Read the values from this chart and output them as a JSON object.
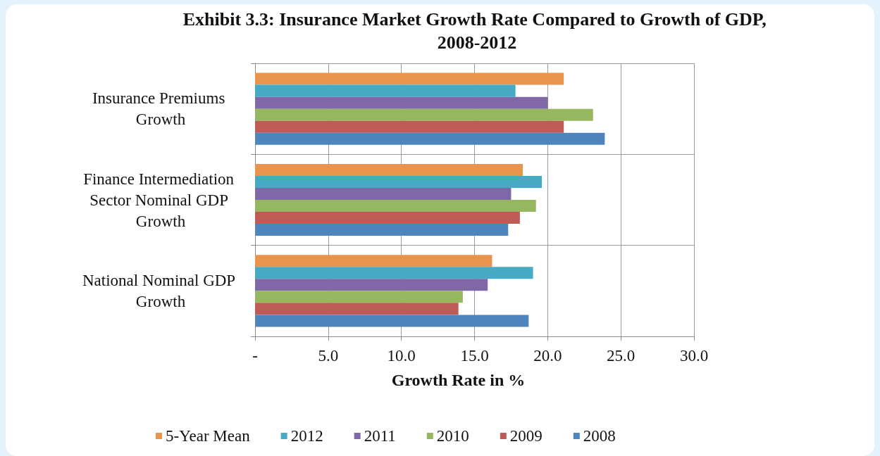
{
  "chart_data": {
    "type": "bar",
    "orientation": "horizontal",
    "title": "Exhibit 3.3: Insurance Market Growth Rate Compared to Growth of GDP, 2008-2012",
    "xlabel": "Growth Rate in %",
    "categories": [
      "Insurance Premiums Growth",
      "Finance Intermediation Sector Nominal GDP Growth",
      "National Nominal GDP Growth"
    ],
    "series": [
      {
        "name": "5-Year Mean",
        "color": "#e8944e",
        "values": [
          21.1,
          18.3,
          16.2
        ]
      },
      {
        "name": "2012",
        "color": "#47aac5",
        "values": [
          17.8,
          19.6,
          19.0
        ]
      },
      {
        "name": "2011",
        "color": "#8067a6",
        "values": [
          20.0,
          17.5,
          15.9
        ]
      },
      {
        "name": "2010",
        "color": "#97b660",
        "values": [
          23.1,
          19.2,
          14.2
        ]
      },
      {
        "name": "2009",
        "color": "#bf5b56",
        "values": [
          21.1,
          18.1,
          13.9
        ]
      },
      {
        "name": "2008",
        "color": "#4e85bc",
        "values": [
          23.9,
          17.3,
          18.7
        ]
      }
    ],
    "xlim": [
      0,
      30
    ],
    "xticks": [
      {
        "value": 0,
        "label": "-"
      },
      {
        "value": 5,
        "label": "5.0"
      },
      {
        "value": 10,
        "label": "10.0"
      },
      {
        "value": 15,
        "label": "15.0"
      },
      {
        "value": 20,
        "label": "20.0"
      },
      {
        "value": 25,
        "label": "25.0"
      },
      {
        "value": 30,
        "label": "30.0"
      }
    ],
    "grid": true,
    "legend": "bottom"
  }
}
